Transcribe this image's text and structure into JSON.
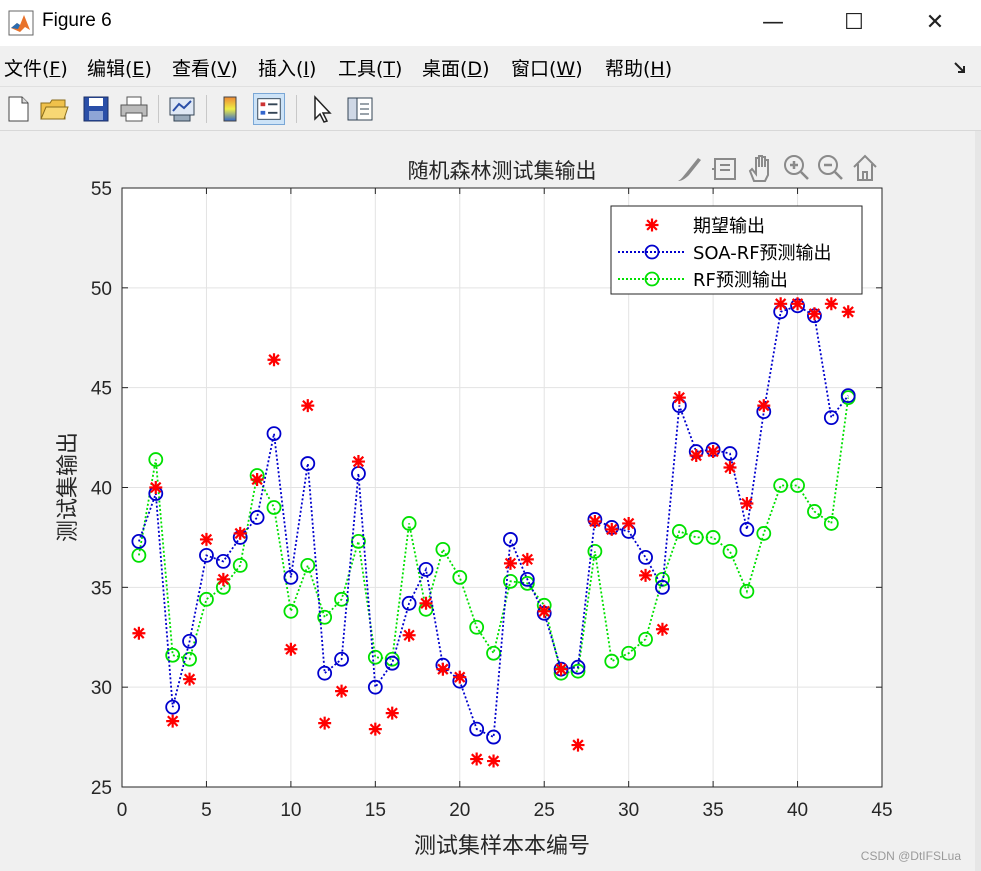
{
  "window": {
    "title": "Figure 6",
    "minimize_symbol": "—",
    "maximize_symbol": "☐",
    "close_symbol": "✕"
  },
  "menu": [
    {
      "label": "文件(",
      "key": "F",
      "tail": ")"
    },
    {
      "label": "编辑(",
      "key": "E",
      "tail": ")"
    },
    {
      "label": "查看(",
      "key": "V",
      "tail": ")"
    },
    {
      "label": "插入(",
      "key": "I",
      "tail": ")"
    },
    {
      "label": "工具(",
      "key": "T",
      "tail": ")"
    },
    {
      "label": "桌面(",
      "key": "D",
      "tail": ")"
    },
    {
      "label": "窗口(",
      "key": "W",
      "tail": ")"
    },
    {
      "label": "帮助(",
      "key": "H",
      "tail": ")"
    }
  ],
  "toolbar": {
    "icons": [
      "new-figure-icon",
      "open-file-icon",
      "save-icon",
      "print-icon",
      "link-plot-icon",
      "colorbar-icon",
      "legend-icon",
      "select-arrow-icon",
      "property-inspector-icon"
    ]
  },
  "axes_toolbar": {
    "icons": [
      "brush-icon",
      "data-tips-icon",
      "pan-hand-icon",
      "zoom-in-icon",
      "zoom-out-icon",
      "home-icon"
    ]
  },
  "watermark": "CSDN @DtIFSLua",
  "colors": {
    "expected": "#ff0000",
    "soa_rf": "#0000cd",
    "rf": "#00e000"
  },
  "chart_data": {
    "type": "line",
    "title": "随机森林测试集输出",
    "xlabel": "测试集样本本编号",
    "ylabel": "测试集输出",
    "xlim": [
      0,
      45
    ],
    "ylim": [
      25,
      55
    ],
    "xticks": [
      0,
      5,
      10,
      15,
      20,
      25,
      30,
      35,
      40,
      45
    ],
    "yticks": [
      25,
      30,
      35,
      40,
      45,
      50,
      55
    ],
    "grid": true,
    "legend_position": "top-right",
    "x": [
      1,
      2,
      3,
      4,
      5,
      6,
      7,
      8,
      9,
      10,
      11,
      12,
      13,
      14,
      15,
      16,
      17,
      18,
      19,
      20,
      21,
      22,
      23,
      24,
      25,
      26,
      27,
      28,
      29,
      30,
      31,
      32,
      33,
      34,
      35,
      36,
      37,
      38,
      39,
      40,
      41,
      42,
      43
    ],
    "series": [
      {
        "name": "期望输出",
        "marker": "asterisk",
        "line": "none",
        "values": [
          32.7,
          40.0,
          28.3,
          30.4,
          37.4,
          35.4,
          37.7,
          40.4,
          46.4,
          31.9,
          44.1,
          28.2,
          29.8,
          41.3,
          27.9,
          28.7,
          32.6,
          34.2,
          30.9,
          30.5,
          26.4,
          26.3,
          36.2,
          36.4,
          33.8,
          30.9,
          27.1,
          38.3,
          37.9,
          38.2,
          35.6,
          32.9,
          44.5,
          41.6,
          41.8,
          41.0,
          39.2,
          44.1,
          49.2,
          49.2,
          48.7,
          49.2,
          48.8
        ]
      },
      {
        "name": "SOA-RF预测输出",
        "marker": "circle",
        "line": "dotted",
        "values": [
          37.3,
          39.7,
          29.0,
          32.3,
          36.6,
          36.3,
          37.5,
          38.5,
          42.7,
          35.5,
          41.2,
          30.7,
          31.4,
          40.7,
          30.0,
          31.2,
          34.2,
          35.9,
          31.1,
          30.3,
          27.9,
          27.5,
          37.4,
          35.4,
          33.7,
          30.9,
          31.0,
          38.4,
          38.0,
          37.8,
          36.5,
          35.0,
          44.1,
          41.8,
          41.9,
          41.7,
          37.9,
          43.8,
          48.8,
          49.1,
          48.6,
          43.5,
          44.6
        ]
      },
      {
        "name": "RF预测输出",
        "marker": "circle",
        "line": "dotted",
        "values": [
          36.6,
          41.4,
          31.6,
          31.4,
          34.4,
          35.0,
          36.1,
          40.6,
          39.0,
          33.8,
          36.1,
          33.5,
          34.4,
          37.3,
          31.5,
          31.4,
          38.2,
          33.9,
          36.9,
          35.5,
          33.0,
          31.7,
          35.3,
          35.2,
          34.1,
          30.7,
          30.8,
          36.8,
          31.3,
          31.7,
          32.4,
          35.4,
          37.8,
          37.5,
          37.5,
          36.8,
          34.8,
          37.7,
          40.1,
          40.1,
          38.8,
          38.2,
          44.5
        ]
      }
    ]
  }
}
